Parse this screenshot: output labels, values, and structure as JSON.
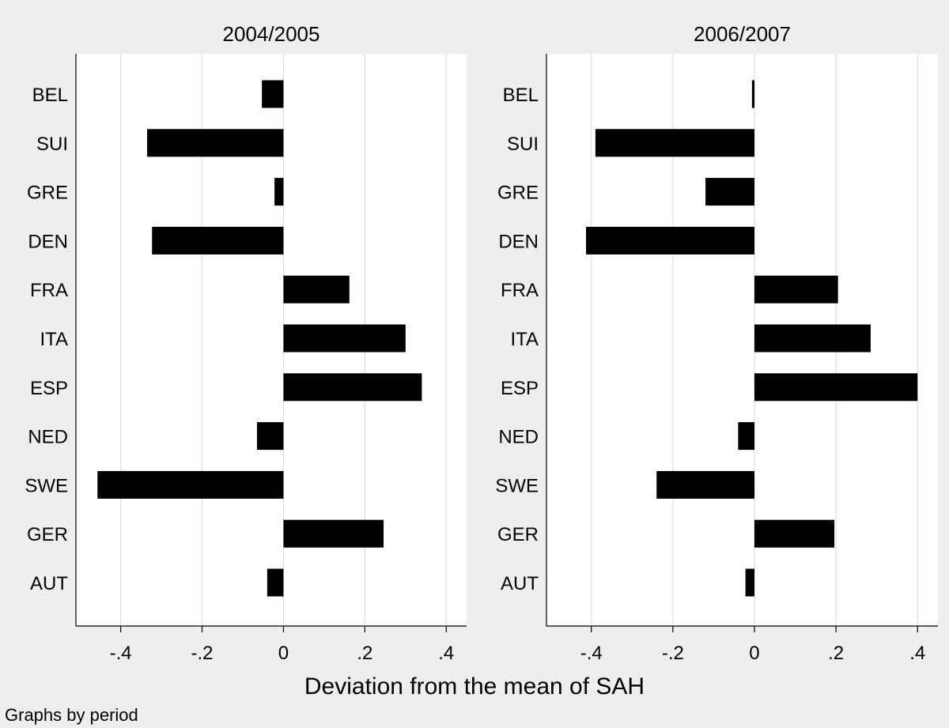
{
  "chart_data": {
    "type": "bar",
    "orientation": "horizontal",
    "xlabel": "Deviation from the mean of SAH",
    "note": "Graphs by period",
    "xlim": [
      -0.51,
      0.45
    ],
    "xticks": [
      -0.4,
      -0.2,
      0,
      0.2,
      0.4
    ],
    "xtick_labels": [
      "-.4",
      "-.2",
      "0",
      ".2",
      ".4"
    ],
    "grid": true,
    "categories": [
      "BEL",
      "SUI",
      "GRE",
      "DEN",
      "FRA",
      "ITA",
      "ESP",
      "NED",
      "SWE",
      "GER",
      "AUT"
    ],
    "bar_color": "#000000",
    "background": "#eeeeee",
    "plot_background": "#ffffff",
    "grid_color": "#dddddd",
    "panels": [
      {
        "title": "2004/2005",
        "values": [
          -0.053,
          -0.335,
          -0.022,
          -0.323,
          0.162,
          0.3,
          0.34,
          -0.065,
          -0.457,
          0.246,
          -0.04
        ]
      },
      {
        "title": "2006/2007",
        "values": [
          -0.006,
          -0.39,
          -0.12,
          -0.413,
          0.205,
          0.285,
          0.4,
          -0.04,
          -0.24,
          0.196,
          -0.022
        ]
      }
    ]
  }
}
